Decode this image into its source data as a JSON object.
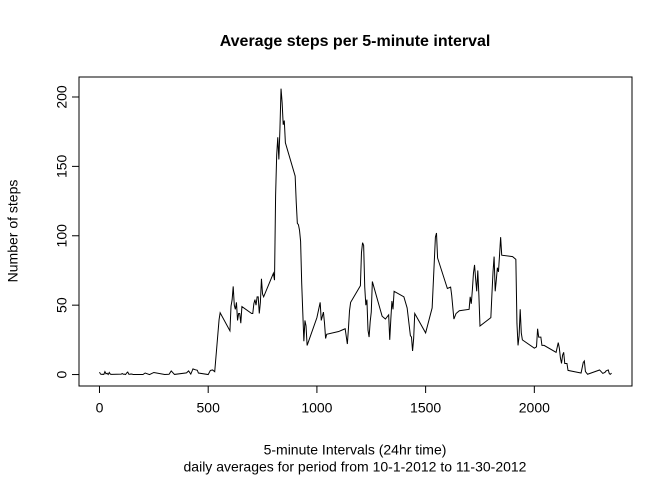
{
  "chart_data": {
    "type": "line",
    "title": "Average steps per 5-minute interval",
    "xlabel": "5-minute Intervals (24hr time)",
    "subtitle": "daily averages for period from 10-1-2012 to 11-30-2012",
    "ylabel": "Number of steps",
    "color": "#000000",
    "xlim": [
      -94.2,
      2449.2
    ],
    "ylim": [
      -8.25,
      214.4
    ],
    "xticks": [
      0,
      500,
      1000,
      1500,
      2000
    ],
    "yticks": [
      0,
      50,
      100,
      150,
      200
    ],
    "x": [
      0,
      5,
      10,
      15,
      20,
      25,
      30,
      35,
      40,
      45,
      50,
      55,
      100,
      105,
      110,
      115,
      120,
      125,
      130,
      135,
      140,
      145,
      150,
      155,
      200,
      210,
      230,
      250,
      300,
      320,
      330,
      345,
      400,
      410,
      420,
      430,
      440,
      450,
      455,
      500,
      510,
      520,
      530,
      550,
      555,
      600,
      605,
      610,
      615,
      620,
      625,
      630,
      635,
      640,
      645,
      650,
      655,
      700,
      705,
      710,
      715,
      720,
      725,
      730,
      735,
      740,
      745,
      750,
      755,
      800,
      805,
      810,
      815,
      820,
      825,
      830,
      835,
      840,
      845,
      850,
      855,
      900,
      905,
      910,
      915,
      920,
      925,
      930,
      935,
      940,
      945,
      950,
      955,
      1000,
      1015,
      1020,
      1030,
      1035,
      1040,
      1045,
      1100,
      1115,
      1130,
      1140,
      1145,
      1150,
      1155,
      1200,
      1205,
      1210,
      1215,
      1220,
      1225,
      1230,
      1235,
      1240,
      1245,
      1250,
      1255,
      1300,
      1315,
      1330,
      1335,
      1340,
      1345,
      1350,
      1355,
      1400,
      1415,
      1430,
      1435,
      1440,
      1445,
      1450,
      1500,
      1515,
      1530,
      1535,
      1540,
      1545,
      1550,
      1555,
      1600,
      1615,
      1620,
      1630,
      1640,
      1655,
      1700,
      1705,
      1710,
      1715,
      1720,
      1725,
      1730,
      1735,
      1740,
      1745,
      1750,
      1800,
      1805,
      1810,
      1815,
      1820,
      1825,
      1830,
      1835,
      1840,
      1845,
      1850,
      1900,
      1915,
      1920,
      1925,
      1930,
      1935,
      1940,
      1945,
      2000,
      2010,
      2015,
      2020,
      2030,
      2035,
      2045,
      2100,
      2110,
      2115,
      2120,
      2125,
      2130,
      2135,
      2140,
      2145,
      2150,
      2155,
      2200,
      2215,
      2225,
      2230,
      2235,
      2245,
      2300,
      2315,
      2325,
      2330,
      2340,
      2345,
      2350,
      2355
    ],
    "values": [
      1.7,
      0.3,
      0.1,
      0.2,
      0.1,
      2.1,
      0.5,
      0.9,
      0,
      1.5,
      0.3,
      0.1,
      0.3,
      0.7,
      0.2,
      0.3,
      0,
      1.1,
      1.8,
      0.2,
      0.2,
      0.4,
      0.3,
      0,
      0,
      1.1,
      0,
      1.5,
      0,
      0.2,
      2.6,
      0.1,
      1.2,
      2.6,
      0.3,
      4.1,
      3.5,
      3.1,
      1.1,
      0,
      3,
      3.3,
      2.1,
      39.5,
      44.5,
      31.5,
      49.3,
      53.8,
      63.5,
      50,
      47,
      52,
      39,
      44,
      44,
      37,
      49,
      44,
      44,
      51,
      54,
      50,
      56,
      56,
      44,
      52,
      69,
      58,
      56,
      73,
      68,
      129,
      158,
      171,
      155,
      177,
      206,
      196,
      180,
      183,
      167,
      143,
      124,
      109,
      108,
      104,
      96,
      66,
      45,
      24,
      39,
      35,
      21,
      41,
      52,
      39,
      45,
      37,
      26,
      29,
      31,
      32,
      33,
      22,
      33,
      46,
      52,
      64,
      88,
      95,
      93,
      63,
      50,
      54,
      32,
      27,
      38,
      45,
      67,
      42,
      40,
      43,
      25,
      40,
      53,
      47,
      60,
      56,
      48,
      28,
      27,
      17,
      26,
      44,
      30,
      39,
      48,
      65,
      82,
      99,
      102,
      84,
      62,
      63,
      57,
      40,
      44,
      46,
      47,
      56,
      51,
      61,
      73,
      79,
      69,
      60,
      75,
      57,
      35,
      41,
      58,
      74,
      85,
      60,
      68,
      77,
      74,
      86,
      99,
      86,
      85,
      83,
      37,
      21,
      28,
      47,
      30,
      25,
      19,
      20,
      33,
      27,
      27,
      21,
      21,
      16,
      23,
      19,
      12,
      8,
      14,
      16,
      8,
      8,
      8,
      3,
      1.6,
      1.1,
      8.7,
      9.8,
      2.2,
      0.2,
      3.3,
      0.8,
      1.6,
      2.6,
      3.3,
      0.6,
      0.2,
      1.1
    ]
  }
}
